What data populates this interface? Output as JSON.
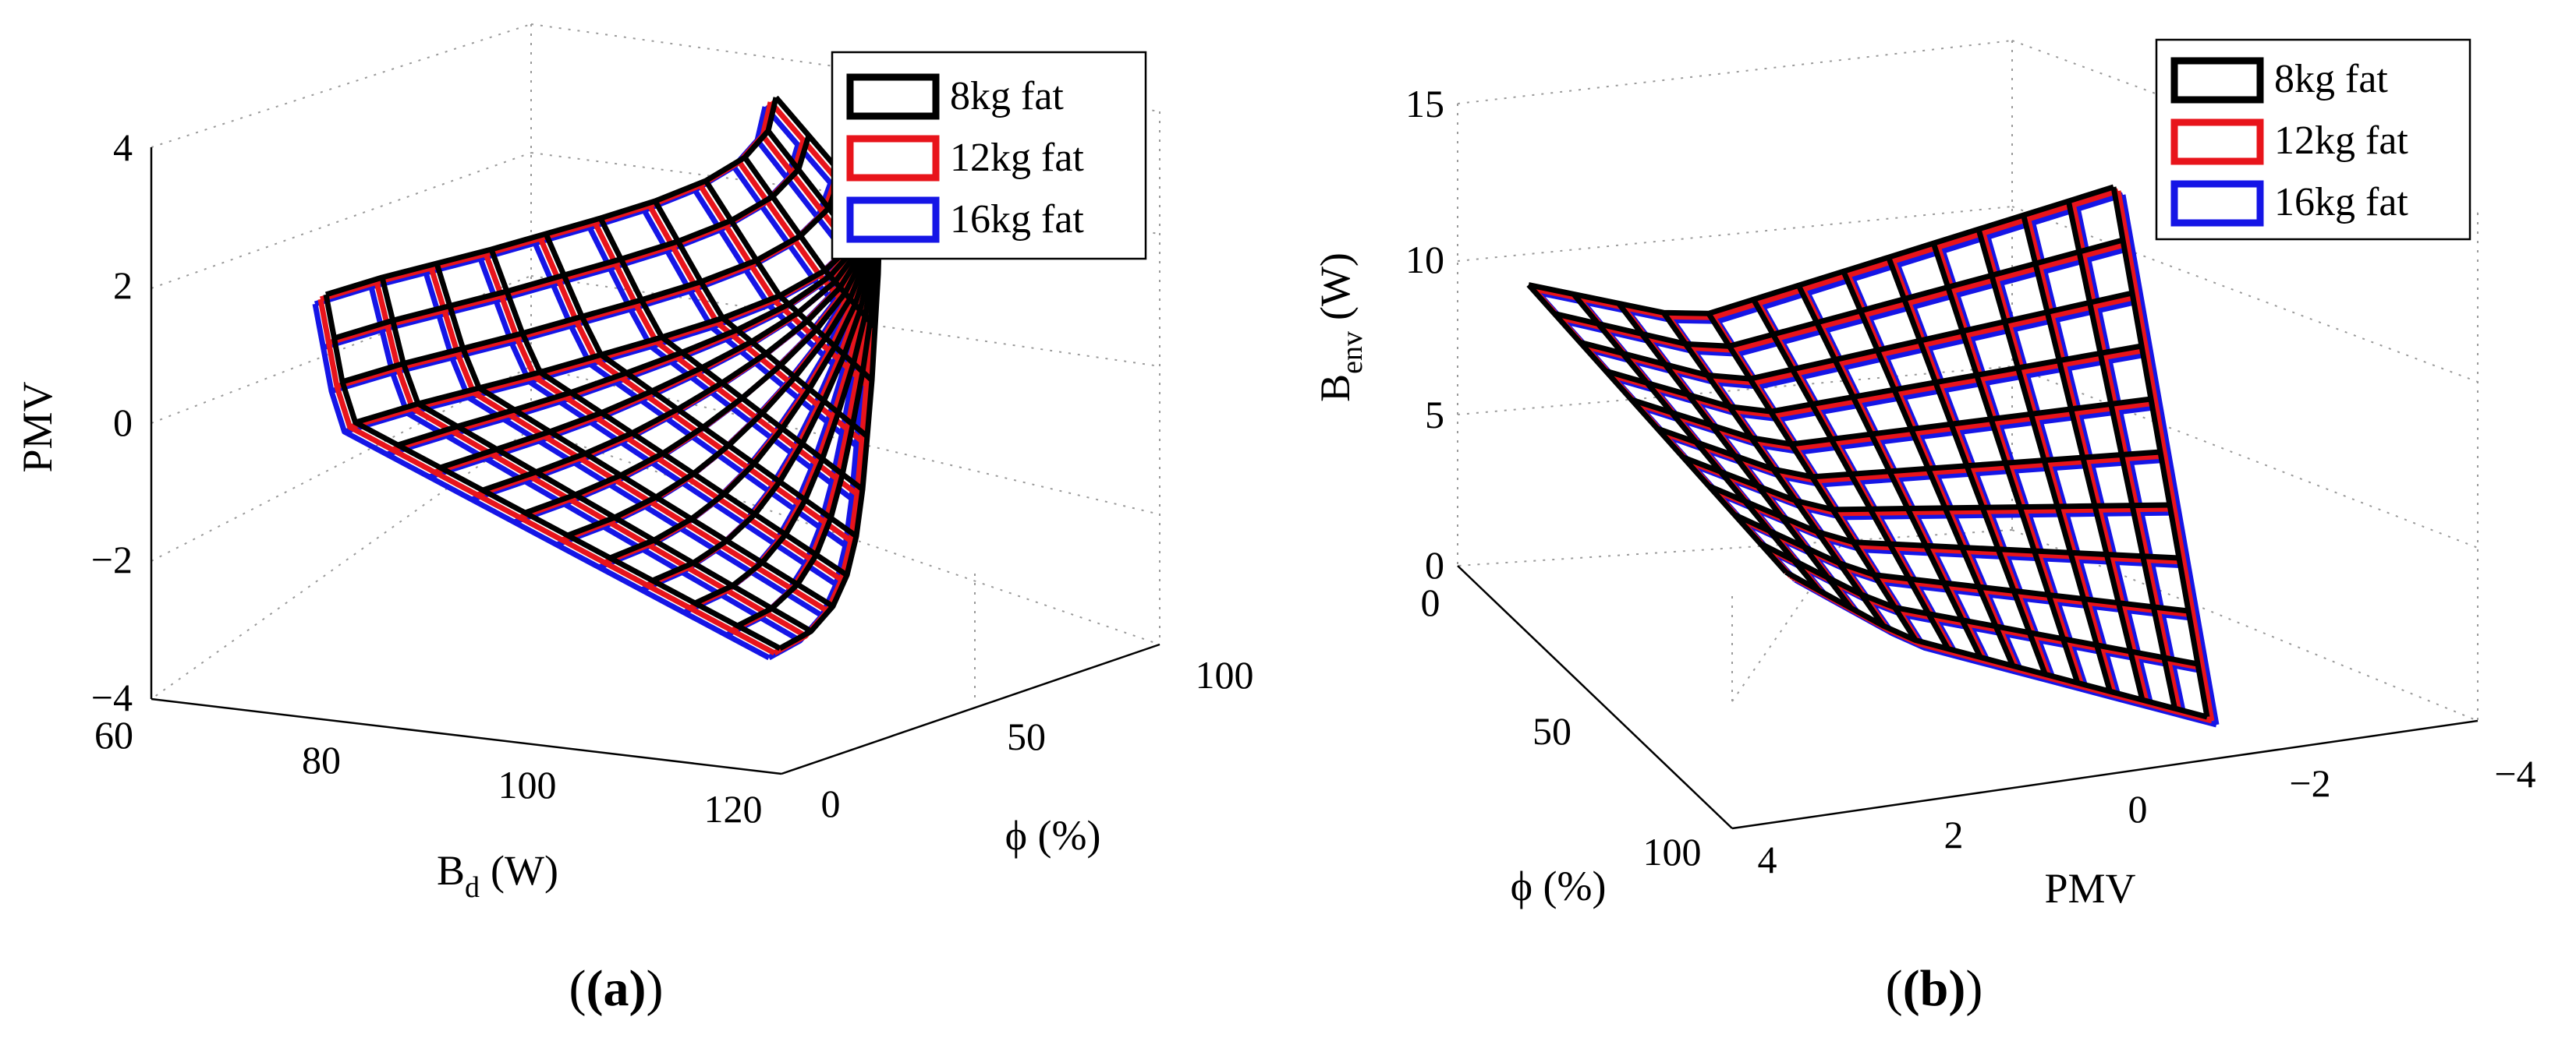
{
  "colors": {
    "s8": "#000000",
    "s12": "#e8141b",
    "s16": "#1515e6"
  },
  "chart_data": [
    {
      "type": "surface",
      "panel": "(a)",
      "xlabel": "B",
      "xlabel_sub": "d",
      "xlabel_unit": "(W)",
      "ylabel": "ϕ (%)",
      "zlabel": "PMV",
      "xlim": [
        60,
        120
      ],
      "ylim": [
        0,
        100
      ],
      "zlim": [
        -4,
        4
      ],
      "x_ticks": [
        "60",
        "80",
        "100",
        "120"
      ],
      "y_ticks": [
        "0",
        "50",
        "100"
      ],
      "z_ticks": [
        "4",
        "2",
        "0",
        "−2",
        "−4"
      ],
      "legend": [
        "8kg fat",
        "12kg fat",
        "16kg fat"
      ],
      "legend_position": "top-right",
      "series": [
        {
          "name": "8kg fat",
          "offset": 0
        },
        {
          "name": "12kg fat",
          "offset": 1
        },
        {
          "name": "16kg fat",
          "offset": 2
        }
      ]
    },
    {
      "type": "surface",
      "panel": "(b)",
      "xlabel": "PMV",
      "ylabel": "ϕ (%)",
      "zlabel": "B",
      "zlabel_sub": "env",
      "zlabel_unit": "(W)",
      "xlim": [
        4,
        -4
      ],
      "ylim": [
        0,
        100
      ],
      "zlim": [
        0,
        15
      ],
      "x_ticks": [
        "4",
        "2",
        "0",
        "−2",
        "−4"
      ],
      "y_ticks": [
        "0",
        "50",
        "100"
      ],
      "z_ticks": [
        "15",
        "10",
        "5",
        "0"
      ],
      "legend": [
        "8kg fat",
        "12kg fat",
        "16kg fat"
      ],
      "legend_position": "top-right",
      "series": [
        {
          "name": "8kg fat",
          "offset": 0
        },
        {
          "name": "12kg fat",
          "offset": 1
        },
        {
          "name": "16kg fat",
          "offset": 2
        }
      ]
    }
  ]
}
